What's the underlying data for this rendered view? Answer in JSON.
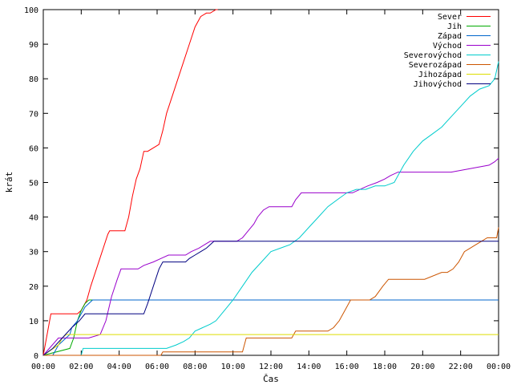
{
  "chart_data": {
    "type": "line",
    "title": "",
    "xlabel": "Čas",
    "ylabel": "krát",
    "xlim": [
      0,
      24
    ],
    "ylim": [
      0,
      100
    ],
    "grid": false,
    "legend_position": "top-right",
    "x_ticks": [
      0,
      2,
      4,
      6,
      8,
      10,
      12,
      14,
      16,
      18,
      20,
      22,
      24
    ],
    "x_tick_labels": [
      "00:00",
      "02:00",
      "04:00",
      "06:00",
      "08:00",
      "10:00",
      "12:00",
      "14:00",
      "16:00",
      "18:00",
      "20:00",
      "22:00",
      "00:00"
    ],
    "y_ticks": [
      0,
      10,
      20,
      30,
      40,
      50,
      60,
      70,
      80,
      90,
      100
    ],
    "series": [
      {
        "name": "Sever",
        "color": "#ff0000",
        "x": [
          0.0,
          0.4,
          1.4,
          1.8,
          2.0,
          2.3,
          2.5,
          2.8,
          3.1,
          3.4,
          3.5,
          4.3,
          4.5,
          4.7,
          4.9,
          5.1,
          5.3,
          5.5,
          6.1,
          6.3,
          6.5,
          6.8,
          7.1,
          7.4,
          7.7,
          8.0,
          8.3,
          8.6,
          8.8,
          9.1,
          9.2
        ],
        "y": [
          0,
          12,
          12,
          12,
          13,
          16,
          20,
          25,
          30,
          35,
          36,
          36,
          40,
          46,
          51,
          54,
          59,
          59,
          61,
          65,
          70,
          75,
          80,
          85,
          90,
          95,
          98,
          99,
          99,
          100,
          100
        ]
      },
      {
        "name": "Jih",
        "color": "#00aa00",
        "x": [
          0.0,
          1.4,
          1.6,
          1.8,
          2.0,
          2.2,
          2.4,
          24.0
        ],
        "y": [
          0,
          2,
          5,
          10,
          13,
          15,
          16,
          16
        ]
      },
      {
        "name": "Západ",
        "color": "#0066cc",
        "x": [
          0.0,
          0.5,
          0.6,
          0.7,
          0.8,
          1.2,
          1.4,
          1.5,
          1.8,
          2.0,
          2.2,
          2.4,
          2.6,
          24.0
        ],
        "y": [
          0,
          0,
          1,
          2,
          3,
          5,
          6,
          8,
          10,
          12,
          14,
          15,
          16,
          16
        ]
      },
      {
        "name": "Východ",
        "color": "#9900cc",
        "x": [
          0.0,
          0.8,
          2.4,
          3.0,
          3.3,
          3.6,
          3.9,
          4.1,
          5.0,
          5.3,
          5.8,
          6.2,
          6.6,
          7.5,
          7.8,
          8.2,
          8.5,
          8.8,
          10.2,
          10.5,
          10.8,
          11.1,
          11.3,
          11.6,
          11.9,
          13.1,
          13.3,
          13.6,
          14.5,
          15.1,
          15.4,
          15.8,
          16.3,
          16.7,
          17.1,
          17.6,
          18.0,
          18.3,
          18.7,
          21.5,
          22.5,
          23.5,
          23.8,
          24.0
        ],
        "y": [
          0,
          5,
          5,
          6,
          10,
          17,
          22,
          25,
          25,
          26,
          27,
          28,
          29,
          29,
          30,
          31,
          32,
          33,
          33,
          34,
          36,
          38,
          40,
          42,
          43,
          43,
          45,
          47,
          47,
          47,
          47,
          47,
          47,
          48,
          49,
          50,
          51,
          52,
          53,
          53,
          54,
          55,
          56,
          57
        ]
      },
      {
        "name": "Severovýchod",
        "color": "#00cccc",
        "x": [
          0.0,
          2.0,
          2.1,
          4.0,
          6.5,
          7.0,
          7.4,
          7.7,
          8.0,
          8.4,
          8.8,
          9.1,
          9.4,
          9.7,
          10.0,
          10.5,
          11.0,
          11.5,
          12.0,
          12.5,
          13.0,
          13.5,
          14.0,
          14.5,
          15.0,
          15.5,
          16.0,
          16.5,
          17.0,
          17.5,
          18.0,
          18.5,
          19.0,
          19.5,
          20.0,
          20.5,
          21.0,
          21.5,
          22.0,
          22.5,
          23.0,
          23.5,
          23.8,
          24.0
        ],
        "y": [
          0,
          0,
          2,
          2,
          2,
          3,
          4,
          5,
          7,
          8,
          9,
          10,
          12,
          14,
          16,
          20,
          24,
          27,
          30,
          31,
          32,
          34,
          37,
          40,
          43,
          45,
          47,
          48,
          48,
          49,
          49,
          50,
          55,
          59,
          62,
          64,
          66,
          69,
          72,
          75,
          77,
          78,
          80,
          85
        ]
      },
      {
        "name": "Severozápad",
        "color": "#cc5500",
        "x": [
          0.0,
          6.2,
          6.3,
          8.0,
          10.5,
          10.7,
          12.0,
          13.1,
          13.3,
          15.0,
          15.3,
          15.6,
          15.9,
          16.2,
          17.2,
          17.5,
          17.9,
          18.2,
          19.2,
          19.5,
          19.8,
          20.1,
          21.0,
          21.3,
          21.6,
          21.9,
          22.2,
          22.5,
          22.8,
          23.1,
          23.4,
          23.7,
          23.9,
          24.0
        ],
        "y": [
          0,
          0,
          1,
          1,
          1,
          5,
          5,
          5,
          7,
          7,
          8,
          10,
          13,
          16,
          16,
          17,
          20,
          22,
          22,
          22,
          22,
          22,
          24,
          24,
          25,
          27,
          30,
          31,
          32,
          33,
          34,
          34,
          34,
          37
        ]
      },
      {
        "name": "Jihozápad",
        "color": "#dddd00",
        "x": [
          0.0,
          0.8,
          1.0,
          1.2,
          24.0
        ],
        "y": [
          0,
          3,
          5,
          6,
          6
        ]
      },
      {
        "name": "Jihovýchod",
        "color": "#000080",
        "x": [
          0.0,
          0.5,
          1.0,
          1.5,
          1.9,
          2.2,
          2.6,
          5.3,
          5.5,
          5.8,
          6.1,
          6.3,
          7.5,
          7.7,
          8.0,
          8.3,
          8.6,
          9.0,
          24.0
        ],
        "y": [
          0,
          2,
          5,
          8,
          10,
          12,
          12,
          12,
          15,
          20,
          25,
          27,
          27,
          28,
          29,
          30,
          31,
          33,
          33
        ]
      }
    ]
  }
}
